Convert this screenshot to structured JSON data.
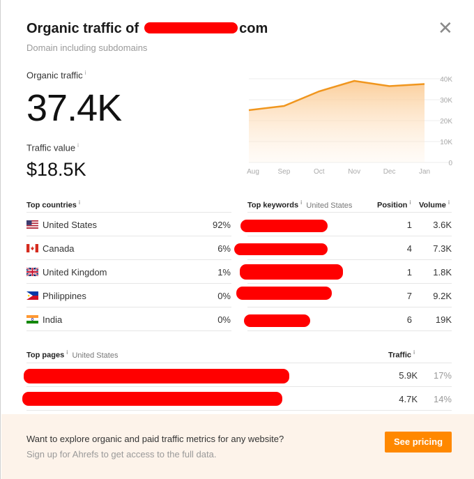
{
  "header": {
    "title_prefix": "Organic traffic of",
    "title_suffix": "com",
    "subtitle": "Domain including subdomains",
    "close_symbol": "✕"
  },
  "metrics": {
    "organic_traffic_label": "Organic traffic",
    "organic_traffic_value": "37.4K",
    "traffic_value_label": "Traffic value",
    "traffic_value_value": "$18.5K",
    "info_symbol": "i"
  },
  "chart_data": {
    "type": "area",
    "x": [
      "Aug",
      "Sep",
      "Oct",
      "Nov",
      "Dec",
      "Jan"
    ],
    "y_ticks": [
      "40K",
      "30K",
      "20K",
      "10K",
      "0"
    ],
    "ylim": [
      0,
      40000
    ],
    "series": [
      {
        "values": [
          25000,
          27000,
          34000,
          39000,
          36500,
          37500
        ]
      }
    ],
    "grid": true,
    "colors": {
      "line": "#f0961e",
      "fill": "#fcd9b0"
    }
  },
  "countries": {
    "header": "Top countries",
    "rows": [
      {
        "flag": "us-flag-icon",
        "name": "United States",
        "share": "92%"
      },
      {
        "flag": "canada-flag-icon",
        "name": "Canada",
        "share": "6%"
      },
      {
        "flag": "uk-flag-icon",
        "name": "United Kingdom",
        "share": "1%"
      },
      {
        "flag": "philippines-flag-icon",
        "name": "Philippines",
        "share": "0%"
      },
      {
        "flag": "india-flag-icon",
        "name": "India",
        "share": "0%"
      }
    ]
  },
  "keywords": {
    "header": "Top keywords",
    "region": "United States",
    "position_header": "Position",
    "volume_header": "Volume",
    "rows": [
      {
        "position": "1",
        "volume": "3.6K"
      },
      {
        "position": "4",
        "volume": "7.3K"
      },
      {
        "position": "1",
        "volume": "1.8K"
      },
      {
        "position": "7",
        "volume": "9.2K"
      },
      {
        "position": "6",
        "volume": "19K"
      }
    ]
  },
  "pages": {
    "header": "Top pages",
    "region": "United States",
    "traffic_header": "Traffic",
    "rows": [
      {
        "traffic": "5.9K",
        "share": "17%"
      },
      {
        "traffic": "4.7K",
        "share": "14%"
      }
    ]
  },
  "footer": {
    "main_text": "Want to explore organic and paid traffic metrics for any website?",
    "sub_text": "Sign up for Ahrefs to get access to the full data.",
    "button_label": "See pricing",
    "accent": "#ff8800"
  }
}
